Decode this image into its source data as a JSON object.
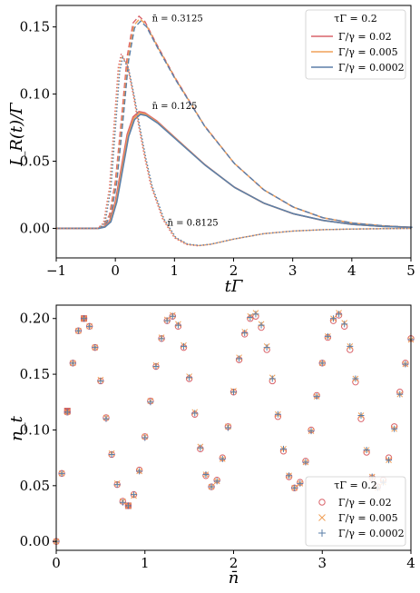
{
  "chart_data": [
    {
      "type": "line",
      "title": "",
      "xlabel": "tΓ",
      "ylabel": "I_R(t)/Γ",
      "xlim": [
        -1,
        5
      ],
      "ylim": [
        -0.022,
        0.166
      ],
      "xticks": [
        -1,
        0,
        1,
        2,
        3,
        4,
        5
      ],
      "xtick_labels": [
        "−1",
        "0",
        "1",
        "2",
        "3",
        "4",
        "5"
      ],
      "yticks": [
        0.0,
        0.05,
        0.1,
        0.15
      ],
      "ytick_labels": [
        "0.00",
        "0.05",
        "0.10",
        "0.15"
      ],
      "grid": false,
      "legend_position": "top-right",
      "legend_title": "τΓ = 0.2",
      "series": [
        {
          "name": "Γ/γ = 0.02",
          "color": "#d9636a"
        },
        {
          "name": "Γ/γ = 0.005",
          "color": "#f0a058"
        },
        {
          "name": "Γ/γ = 0.0002",
          "color": "#5b7fa8"
        }
      ],
      "curves": [
        {
          "label": "n̄ = 0.3125",
          "style": "dashed",
          "x_peak": 0.35,
          "y_peak": 0.158,
          "y_end": 0.0008,
          "x": [
            -1,
            -0.3,
            -0.2,
            -0.1,
            0,
            0.1,
            0.2,
            0.3,
            0.4,
            0.5,
            0.7,
            1.0,
            1.5,
            2.0,
            2.5,
            3.0,
            3.5,
            4.0,
            4.5,
            5.0
          ],
          "y": [
            0,
            0,
            0.002,
            0.01,
            0.035,
            0.08,
            0.128,
            0.153,
            0.158,
            0.154,
            0.137,
            0.113,
            0.077,
            0.049,
            0.029,
            0.016,
            0.008,
            0.004,
            0.002,
            0.0008
          ]
        },
        {
          "label": "n̄ = 0.125",
          "style": "solid",
          "x_peak": 0.4,
          "y_peak": 0.087,
          "y_end": 0.0008,
          "x": [
            -1,
            -0.3,
            -0.2,
            -0.1,
            0,
            0.1,
            0.2,
            0.3,
            0.4,
            0.5,
            0.7,
            1.0,
            1.5,
            2.0,
            2.5,
            3.0,
            3.5,
            4.0,
            4.5,
            5.0
          ],
          "y": [
            0,
            0,
            0.001,
            0.005,
            0.02,
            0.045,
            0.07,
            0.083,
            0.087,
            0.086,
            0.08,
            0.068,
            0.048,
            0.031,
            0.019,
            0.011,
            0.006,
            0.003,
            0.0015,
            0.0008
          ]
        },
        {
          "label": "n̄ = 0.8125",
          "style": "dotted",
          "x_peak": 0.1,
          "y_peak": 0.13,
          "y_min": -0.013,
          "x": [
            -1,
            -0.3,
            -0.2,
            -0.1,
            0,
            0.05,
            0.1,
            0.2,
            0.3,
            0.4,
            0.5,
            0.6,
            0.8,
            1.0,
            1.2,
            1.4,
            1.6,
            2.0,
            2.5,
            3.0,
            3.5,
            4.0,
            5.0
          ],
          "y": [
            0,
            0,
            0.004,
            0.03,
            0.09,
            0.12,
            0.13,
            0.122,
            0.1,
            0.075,
            0.052,
            0.032,
            0.007,
            -0.007,
            -0.012,
            -0.013,
            -0.012,
            -0.008,
            -0.004,
            -0.002,
            -0.001,
            -0.0005,
            0
          ]
        }
      ],
      "annotations": [
        {
          "text": "n̄ = 0.3125",
          "x": 0.62,
          "y": 0.154
        },
        {
          "text": "n̄ = 0.125",
          "x": 0.62,
          "y": 0.089
        },
        {
          "text": "n̄ = 0.8125",
          "x": 0.88,
          "y": 0.002
        }
      ]
    },
    {
      "type": "scatter",
      "title": "",
      "xlabel": "n̄",
      "ylabel": "n_t",
      "xlim": [
        0,
        4
      ],
      "ylim": [
        -0.008,
        0.212
      ],
      "xticks": [
        0,
        1,
        2,
        3,
        4
      ],
      "xtick_labels": [
        "0",
        "1",
        "2",
        "3",
        "4"
      ],
      "yticks": [
        0.0,
        0.05,
        0.1,
        0.15,
        0.2
      ],
      "ytick_labels": [
        "0.00",
        "0.05",
        "0.10",
        "0.15",
        "0.20"
      ],
      "grid": false,
      "legend_position": "bottom-right",
      "legend_title": "τΓ = 0.2",
      "series": [
        {
          "name": "Γ/γ = 0.02",
          "marker": "circle",
          "color": "#d9636a"
        },
        {
          "name": "Γ/γ = 0.005",
          "marker": "x",
          "color": "#f0a058"
        },
        {
          "name": "Γ/γ = 0.0002",
          "marker": "plus",
          "color": "#5b7fa8"
        }
      ],
      "highlighted_points": [
        {
          "x": 0.125,
          "y": 0.117
        },
        {
          "x": 0.3125,
          "y": 0.2
        },
        {
          "x": 0.8125,
          "y": 0.032
        }
      ],
      "points": {
        "x": [
          0.0,
          0.0625,
          0.125,
          0.1875,
          0.25,
          0.3125,
          0.375,
          0.4375,
          0.5,
          0.5625,
          0.625,
          0.6875,
          0.75,
          0.8125,
          0.875,
          0.9375,
          1.0,
          1.0625,
          1.125,
          1.1875,
          1.25,
          1.3125,
          1.375,
          1.4375,
          1.5,
          1.5625,
          1.625,
          1.6875,
          1.75,
          1.8125,
          1.875,
          1.9375,
          2.0,
          2.0625,
          2.125,
          2.1875,
          2.25,
          2.3125,
          2.375,
          2.4375,
          2.5,
          2.5625,
          2.625,
          2.6875,
          2.75,
          2.8125,
          2.875,
          2.9375,
          3.0,
          3.0625,
          3.125,
          3.1875,
          3.25,
          3.3125,
          3.375,
          3.4375,
          3.5,
          3.5625,
          3.625,
          3.6875,
          3.75,
          3.8125,
          3.875,
          3.9375,
          4.0
        ],
        "circle": [
          0.0,
          0.061,
          0.116,
          0.16,
          0.189,
          0.2,
          0.193,
          0.174,
          0.144,
          0.111,
          0.078,
          0.051,
          0.036,
          0.032,
          0.042,
          0.064,
          0.094,
          0.126,
          0.157,
          0.182,
          0.198,
          0.202,
          0.193,
          0.174,
          0.146,
          0.114,
          0.083,
          0.059,
          0.049,
          0.055,
          0.075,
          0.103,
          0.134,
          0.163,
          0.186,
          0.2,
          0.202,
          0.192,
          0.172,
          0.144,
          0.112,
          0.081,
          0.058,
          0.048,
          0.053,
          0.072,
          0.1,
          0.131,
          0.16,
          0.183,
          0.198,
          0.203,
          0.193,
          0.172,
          0.143,
          0.11,
          0.08,
          0.057,
          0.049,
          0.055,
          0.075,
          0.103,
          0.134,
          0.16,
          0.182
        ],
        "x_marker": [
          0.0,
          0.061,
          0.116,
          0.16,
          0.189,
          0.2,
          0.193,
          0.174,
          0.145,
          0.111,
          0.079,
          0.052,
          0.036,
          0.032,
          0.041,
          0.063,
          0.094,
          0.126,
          0.158,
          0.183,
          0.199,
          0.203,
          0.195,
          0.176,
          0.148,
          0.116,
          0.085,
          0.06,
          0.049,
          0.054,
          0.074,
          0.103,
          0.135,
          0.165,
          0.188,
          0.202,
          0.205,
          0.195,
          0.175,
          0.147,
          0.114,
          0.083,
          0.059,
          0.048,
          0.052,
          0.071,
          0.099,
          0.13,
          0.16,
          0.184,
          0.2,
          0.205,
          0.196,
          0.175,
          0.146,
          0.113,
          0.082,
          0.058,
          0.048,
          0.053,
          0.073,
          0.101,
          0.132,
          0.159,
          0.181
        ],
        "plus": [
          0.0,
          0.061,
          0.116,
          0.16,
          0.189,
          0.2,
          0.193,
          0.174,
          0.144,
          0.11,
          0.078,
          0.051,
          0.035,
          0.032,
          0.042,
          0.063,
          0.093,
          0.125,
          0.157,
          0.182,
          0.198,
          0.202,
          0.194,
          0.175,
          0.147,
          0.115,
          0.084,
          0.06,
          0.049,
          0.054,
          0.074,
          0.102,
          0.134,
          0.164,
          0.187,
          0.201,
          0.204,
          0.194,
          0.174,
          0.146,
          0.114,
          0.083,
          0.059,
          0.048,
          0.052,
          0.071,
          0.099,
          0.13,
          0.16,
          0.184,
          0.2,
          0.204,
          0.195,
          0.175,
          0.146,
          0.113,
          0.082,
          0.058,
          0.048,
          0.053,
          0.073,
          0.101,
          0.132,
          0.159,
          0.181
        ]
      }
    }
  ]
}
